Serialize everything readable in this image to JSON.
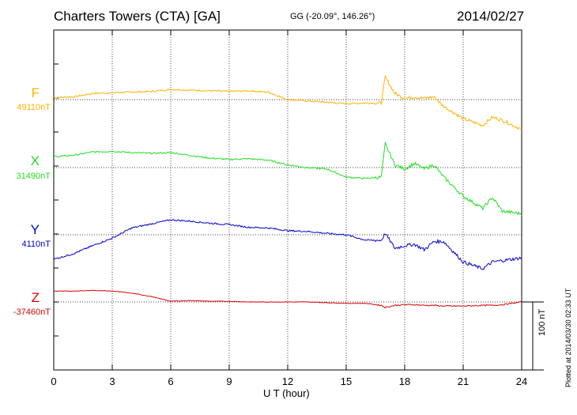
{
  "header": {
    "title": "Charters Towers (CTA)  [GA]",
    "coords": "GG (-20.09°, 146.26°)",
    "date": "2014/02/27"
  },
  "components": [
    {
      "name": "F",
      "baseline": "49110nT",
      "color": "#ffb000"
    },
    {
      "name": "X",
      "baseline": "31490nT",
      "color": "#22dd22"
    },
    {
      "name": "Y",
      "baseline": "4110nT",
      "color": "#0000cc"
    },
    {
      "name": "Z",
      "baseline": "-37460nT",
      "color": "#dd0000"
    }
  ],
  "scale_bar": "100 nT",
  "footer": "Plotted at 2014/03/30 02:33 UT",
  "chart_data": {
    "type": "line",
    "title": "Charters Towers (CTA)  [GA]",
    "xlabel": "U T (hour)",
    "ylabel": "",
    "xlim": [
      0,
      24
    ],
    "x_ticks": [
      0,
      3,
      6,
      9,
      12,
      15,
      18,
      21,
      24
    ],
    "y_units": "nT",
    "scale_bar_nT": 100,
    "grid": true,
    "x": [
      0,
      1,
      2,
      3,
      4,
      5,
      6,
      7,
      8,
      9,
      10,
      11,
      12,
      13,
      14,
      15,
      16,
      16.8,
      17,
      17.5,
      18,
      18.5,
      19,
      19.5,
      20,
      21,
      22,
      22.5,
      23,
      24
    ],
    "series": [
      {
        "name": "F",
        "baseline_nT": 49110,
        "values": [
          3,
          4,
          9,
          10,
          11,
          12,
          15,
          14,
          13,
          12,
          13,
          11,
          0,
          -2,
          -4,
          -6,
          -5,
          -5,
          33,
          9,
          2,
          4,
          2,
          4,
          -10,
          -28,
          -38,
          -26,
          -30,
          -44
        ]
      },
      {
        "name": "X",
        "baseline_nT": 31490,
        "values": [
          16,
          18,
          23,
          24,
          22,
          21,
          22,
          18,
          14,
          12,
          13,
          11,
          4,
          0,
          -2,
          -14,
          -16,
          -14,
          35,
          4,
          -2,
          6,
          -2,
          4,
          -14,
          -42,
          -60,
          -44,
          -64,
          -68
        ]
      },
      {
        "name": "Y",
        "baseline_nT": 4110,
        "values": [
          -36,
          -28,
          -16,
          -5,
          10,
          16,
          22,
          20,
          17,
          15,
          11,
          10,
          6,
          5,
          2,
          0,
          -8,
          -8,
          2,
          -20,
          -16,
          -14,
          -22,
          -10,
          -10,
          -40,
          -50,
          -40,
          -38,
          -34
        ]
      },
      {
        "name": "Z",
        "baseline_nT": -37460,
        "values": [
          16,
          16,
          17,
          16,
          13,
          8,
          1,
          2,
          1,
          1,
          0,
          0,
          0,
          0,
          -1,
          -2,
          -2,
          -5,
          -8,
          -5,
          -4,
          -4,
          -5,
          -5,
          -6,
          -6,
          -5,
          -5,
          -4,
          0
        ]
      }
    ]
  }
}
